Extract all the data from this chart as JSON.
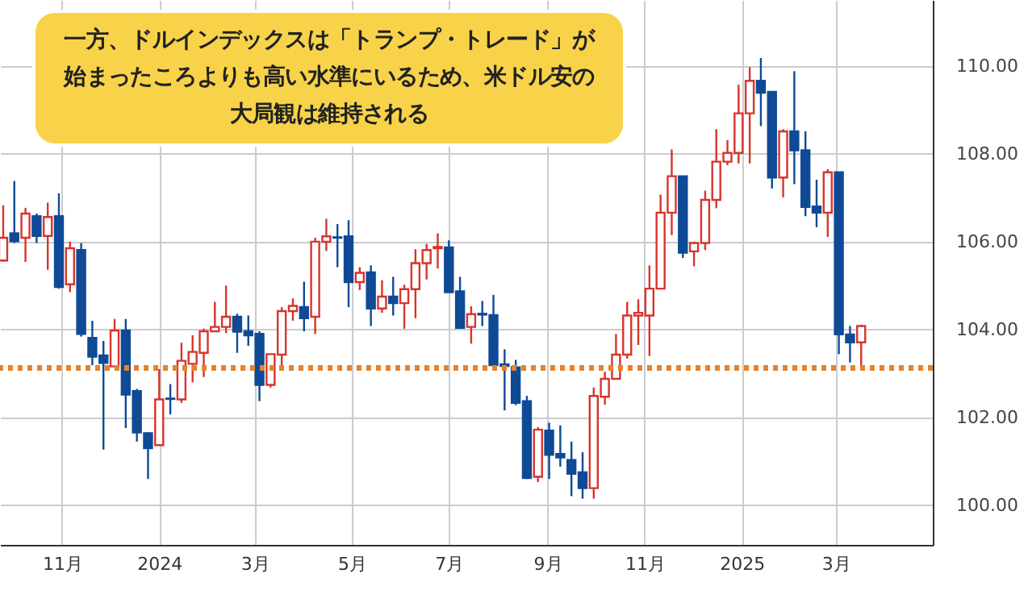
{
  "chart_data": {
    "type": "candlestick",
    "x": [
      "2023-09-25",
      "2023-10-02",
      "2023-10-09",
      "2023-10-16",
      "2023-10-23",
      "2023-10-30",
      "2023-11-06",
      "2023-11-13",
      "2023-11-20",
      "2023-11-27",
      "2023-12-04",
      "2023-12-11",
      "2023-12-18",
      "2023-12-25",
      "2024-01-01",
      "2024-01-08",
      "2024-01-15",
      "2024-01-22",
      "2024-01-29",
      "2024-02-05",
      "2024-02-12",
      "2024-02-19",
      "2024-02-26",
      "2024-03-04",
      "2024-03-11",
      "2024-03-18",
      "2024-03-25",
      "2024-04-01",
      "2024-04-08",
      "2024-04-15",
      "2024-04-22",
      "2024-04-29",
      "2024-05-06",
      "2024-05-13",
      "2024-05-20",
      "2024-05-27",
      "2024-06-03",
      "2024-06-10",
      "2024-06-17",
      "2024-06-24",
      "2024-07-01",
      "2024-07-08",
      "2024-07-15",
      "2024-07-22",
      "2024-07-29",
      "2024-08-05",
      "2024-08-12",
      "2024-08-19",
      "2024-08-26",
      "2024-09-02",
      "2024-09-09",
      "2024-09-16",
      "2024-09-23",
      "2024-09-30",
      "2024-10-07",
      "2024-10-14",
      "2024-10-21",
      "2024-10-28",
      "2024-11-04",
      "2024-11-11",
      "2024-11-18",
      "2024-11-25",
      "2024-12-02",
      "2024-12-09",
      "2024-12-16",
      "2024-12-23",
      "2024-12-30",
      "2025-01-06",
      "2025-01-13",
      "2025-01-20",
      "2025-01-27",
      "2025-02-03",
      "2025-02-10",
      "2025-02-17",
      "2025-02-24",
      "2025-03-03",
      "2025-03-10",
      "2025-03-17"
    ],
    "ohlc": [
      [
        105.57,
        106.83,
        105.55,
        106.09
      ],
      [
        106.19,
        107.38,
        105.97,
        106.01
      ],
      [
        106.09,
        106.77,
        105.54,
        106.64
      ],
      [
        106.58,
        106.64,
        105.97,
        106.13
      ],
      [
        106.13,
        106.89,
        105.36,
        106.56
      ],
      [
        106.58,
        107.1,
        104.93,
        104.97
      ],
      [
        105.03,
        106.0,
        104.85,
        105.85
      ],
      [
        105.81,
        105.97,
        103.84,
        103.9
      ],
      [
        103.81,
        104.2,
        103.19,
        103.38
      ],
      [
        103.41,
        103.74,
        101.27,
        103.24
      ],
      [
        103.16,
        104.24,
        103.16,
        103.98
      ],
      [
        103.98,
        104.24,
        101.76,
        102.52
      ],
      [
        102.6,
        102.65,
        101.45,
        101.66
      ],
      [
        101.64,
        101.66,
        100.6,
        101.3
      ],
      [
        101.37,
        103.1,
        101.37,
        102.41
      ],
      [
        102.43,
        102.76,
        102.07,
        102.42
      ],
      [
        102.41,
        103.7,
        102.33,
        103.29
      ],
      [
        103.22,
        103.87,
        102.8,
        103.49
      ],
      [
        103.47,
        104.02,
        102.92,
        103.96
      ],
      [
        103.96,
        104.63,
        103.96,
        104.06
      ],
      [
        104.06,
        105.0,
        103.92,
        104.29
      ],
      [
        104.29,
        104.36,
        103.47,
        103.95
      ],
      [
        103.96,
        104.32,
        103.63,
        103.87
      ],
      [
        103.9,
        103.96,
        102.37,
        102.74
      ],
      [
        102.74,
        103.44,
        102.68,
        103.44
      ],
      [
        103.43,
        104.51,
        103.16,
        104.42
      ],
      [
        104.42,
        104.71,
        104.2,
        104.54
      ],
      [
        104.51,
        105.09,
        103.96,
        104.26
      ],
      [
        104.29,
        106.09,
        103.9,
        106.0
      ],
      [
        106.0,
        106.52,
        105.79,
        106.12
      ],
      [
        106.1,
        106.4,
        105.42,
        106.09
      ],
      [
        106.12,
        106.49,
        104.51,
        105.08
      ],
      [
        105.08,
        105.42,
        104.9,
        105.29
      ],
      [
        105.3,
        105.46,
        104.08,
        104.48
      ],
      [
        104.48,
        105.12,
        104.38,
        104.75
      ],
      [
        104.75,
        105.2,
        104.32,
        104.6
      ],
      [
        104.6,
        105.02,
        104.02,
        104.92
      ],
      [
        104.92,
        105.83,
        104.26,
        105.51
      ],
      [
        105.51,
        105.95,
        105.14,
        105.81
      ],
      [
        105.85,
        106.19,
        105.39,
        105.88
      ],
      [
        105.87,
        106.03,
        104.85,
        104.85
      ],
      [
        104.87,
        105.2,
        104.04,
        104.04
      ],
      [
        104.06,
        104.53,
        103.68,
        104.35
      ],
      [
        104.36,
        104.65,
        104.08,
        104.34
      ],
      [
        104.33,
        104.79,
        103.19,
        103.19
      ],
      [
        103.21,
        103.55,
        102.16,
        103.17
      ],
      [
        103.14,
        103.31,
        102.28,
        102.33
      ],
      [
        102.37,
        102.49,
        100.6,
        100.62
      ],
      [
        100.65,
        101.78,
        100.53,
        101.72
      ],
      [
        101.7,
        101.88,
        100.6,
        101.15
      ],
      [
        101.17,
        101.82,
        100.88,
        101.09
      ],
      [
        101.03,
        101.45,
        100.21,
        100.72
      ],
      [
        100.75,
        101.21,
        100.15,
        100.39
      ],
      [
        100.39,
        102.68,
        100.15,
        102.49
      ],
      [
        102.47,
        103.04,
        102.29,
        102.88
      ],
      [
        102.88,
        103.9,
        102.88,
        103.43
      ],
      [
        103.43,
        104.63,
        103.34,
        104.32
      ],
      [
        104.32,
        104.69,
        103.65,
        104.38
      ],
      [
        104.32,
        105.46,
        103.4,
        104.93
      ],
      [
        104.93,
        107.07,
        104.93,
        106.66
      ],
      [
        106.66,
        108.1,
        106.15,
        107.49
      ],
      [
        107.49,
        107.49,
        105.63,
        105.75
      ],
      [
        105.78,
        106.0,
        105.44,
        105.97
      ],
      [
        105.97,
        107.16,
        105.81,
        106.95
      ],
      [
        106.95,
        108.56,
        106.76,
        107.82
      ],
      [
        107.82,
        108.31,
        107.74,
        108.02
      ],
      [
        108.02,
        109.57,
        107.78,
        108.92
      ],
      [
        108.92,
        109.97,
        107.78,
        109.66
      ],
      [
        109.66,
        110.18,
        108.63,
        109.39
      ],
      [
        109.41,
        109.41,
        107.21,
        107.46
      ],
      [
        107.46,
        108.56,
        107.01,
        108.51
      ],
      [
        108.51,
        109.88,
        107.31,
        108.08
      ],
      [
        108.08,
        108.51,
        106.58,
        106.79
      ],
      [
        106.8,
        107.41,
        106.33,
        106.66
      ],
      [
        106.66,
        107.65,
        106.11,
        107.58
      ],
      [
        107.58,
        107.58,
        103.44,
        103.89
      ],
      [
        103.89,
        104.08,
        103.25,
        103.71
      ],
      [
        103.71,
        104.11,
        103.16,
        104.08
      ]
    ],
    "colors": [
      "#d7342c",
      "#0f4a96",
      "#d7342c",
      "#0f4a96",
      "#d7342c",
      "#0f4a96",
      "#d7342c",
      "#0f4a96",
      "#0f4a96",
      "#0f4a96",
      "#d7342c",
      "#0f4a96",
      "#0f4a96",
      "#0f4a96",
      "#d7342c",
      "#0f4a96",
      "#d7342c",
      "#d7342c",
      "#d7342c",
      "#d7342c",
      "#d7342c",
      "#0f4a96",
      "#0f4a96",
      "#0f4a96",
      "#d7342c",
      "#d7342c",
      "#d7342c",
      "#0f4a96",
      "#d7342c",
      "#d7342c",
      "#0f4a96",
      "#0f4a96",
      "#d7342c",
      "#0f4a96",
      "#d7342c",
      "#0f4a96",
      "#d7342c",
      "#d7342c",
      "#d7342c",
      "#d7342c",
      "#0f4a96",
      "#0f4a96",
      "#d7342c",
      "#0f4a96",
      "#0f4a96",
      "#0f4a96",
      "#0f4a96",
      "#0f4a96",
      "#d7342c",
      "#0f4a96",
      "#0f4a96",
      "#0f4a96",
      "#0f4a96",
      "#d7342c",
      "#d7342c",
      "#d7342c",
      "#d7342c",
      "#d7342c",
      "#d7342c",
      "#d7342c",
      "#d7342c",
      "#0f4a96",
      "#d7342c",
      "#d7342c",
      "#d7342c",
      "#d7342c",
      "#d7342c",
      "#d7342c",
      "#0f4a96",
      "#0f4a96",
      "#d7342c",
      "#0f4a96",
      "#0f4a96",
      "#0f4a96",
      "#d7342c",
      "#0f4a96",
      "#0f4a96",
      "#d7342c"
    ],
    "xlim": [
      "2023-09-23",
      "2025-05-01"
    ],
    "xticks": [
      {
        "value": "2023-11-01",
        "label": "11月"
      },
      {
        "value": "2024-01-01",
        "label": "2024"
      },
      {
        "value": "2024-03-01",
        "label": "3月"
      },
      {
        "value": "2024-05-01",
        "label": "5月"
      },
      {
        "value": "2024-07-01",
        "label": "7月"
      },
      {
        "value": "2024-09-01",
        "label": "9月"
      },
      {
        "value": "2024-11-01",
        "label": "11月"
      },
      {
        "value": "2025-01-01",
        "label": "2025"
      },
      {
        "value": "2025-03-01",
        "label": "3月"
      }
    ],
    "ylim": [
      99.1,
      111.5
    ],
    "yticks": [
      {
        "value": 100,
        "label": "100.00"
      },
      {
        "value": 102,
        "label": "102.00"
      },
      {
        "value": 104,
        "label": "104.00"
      },
      {
        "value": 106,
        "label": "106.00"
      },
      {
        "value": 108,
        "label": "108.00"
      },
      {
        "value": 110,
        "label": "110.00"
      }
    ],
    "grid": true,
    "ref_lines": [
      {
        "axis": "y",
        "value": 103.13,
        "color": "#e8822a",
        "line_style": "dotted"
      }
    ],
    "annotations": [
      "一方、ドルインデックスは「トランプ・トレード」が始まったころよりも高い水準にいるため、米ドル安の大局観は維持される"
    ]
  }
}
